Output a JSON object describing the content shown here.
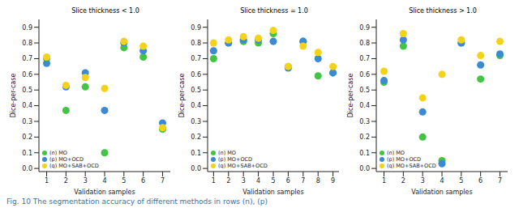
{
  "chart_data": [
    {
      "type": "scatter",
      "title": "Slice thickness < 1.0",
      "x_label": "Validation samples",
      "y_label": "Dice-per-case",
      "x": [
        1,
        2,
        3,
        4,
        5,
        6,
        7
      ],
      "xlim": [
        0.6,
        7.4
      ],
      "xticks": [
        1,
        2,
        3,
        4,
        5,
        6,
        7
      ],
      "ylim": [
        -0.02,
        0.95
      ],
      "yticks": [
        {
          "value": 0,
          "label": "0.0"
        },
        {
          "value": 0.1,
          "label": "0.1"
        },
        {
          "value": 0.2,
          "label": "0.2"
        },
        {
          "value": 0.3,
          "label": "0.3"
        },
        {
          "value": 0.4,
          "label": "0.4"
        },
        {
          "value": 0.5,
          "label": "0.5"
        },
        {
          "value": 0.6,
          "label": "0.6"
        },
        {
          "value": 0.7,
          "label": "0.7"
        },
        {
          "value": 0.8,
          "label": "0.8"
        },
        {
          "value": 0.9,
          "label": "0.9"
        }
      ],
      "grid": false,
      "legend": "lower left",
      "marker": "circle",
      "series": [
        {
          "name": "(n) MO",
          "color": "#44c444",
          "values": [
            0.7,
            0.37,
            0.52,
            0.1,
            0.77,
            0.71,
            0.25
          ]
        },
        {
          "name": "(p) MO+OCD",
          "color": "#3a8ad6",
          "values": [
            0.67,
            0.52,
            0.61,
            0.37,
            0.8,
            0.75,
            0.29
          ]
        },
        {
          "name": "(q) MO+SAB+OCD",
          "color": "#f5d21a",
          "values": [
            0.71,
            0.53,
            0.58,
            0.51,
            0.81,
            0.78,
            0.26
          ]
        }
      ]
    },
    {
      "type": "scatter",
      "title": "Slice thickness = 1.0",
      "x_label": "Validation samples",
      "y_label": "Dice-per-case",
      "x": [
        1,
        2,
        3,
        4,
        5,
        6,
        7,
        8,
        9
      ],
      "xlim": [
        0.6,
        9.4
      ],
      "xticks": [
        1,
        2,
        3,
        4,
        5,
        6,
        7,
        8,
        9
      ],
      "ylim": [
        -0.02,
        0.95
      ],
      "yticks": [
        {
          "value": 0,
          "label": "0.0"
        },
        {
          "value": 0.1,
          "label": "0.1"
        },
        {
          "value": 0.2,
          "label": "0.2"
        },
        {
          "value": 0.3,
          "label": "0.3"
        },
        {
          "value": 0.4,
          "label": "0.4"
        },
        {
          "value": 0.5,
          "label": "0.5"
        },
        {
          "value": 0.6,
          "label": "0.6"
        },
        {
          "value": 0.7,
          "label": "0.7"
        },
        {
          "value": 0.8,
          "label": "0.8"
        },
        {
          "value": 0.9,
          "label": "0.9"
        }
      ],
      "grid": false,
      "legend": "lower left",
      "marker": "circle",
      "series": [
        {
          "name": "(n) MO",
          "color": "#44c444",
          "values": [
            0.7,
            0.8,
            0.81,
            0.8,
            0.86,
            0.65,
            0.81,
            0.59,
            0.61
          ]
        },
        {
          "name": "(p) MO+OCD",
          "color": "#3a8ad6",
          "values": [
            0.75,
            0.8,
            0.82,
            0.82,
            0.81,
            0.64,
            0.81,
            0.7,
            0.61
          ]
        },
        {
          "name": "(q) MO+SAB+OCD",
          "color": "#f5d21a",
          "values": [
            0.8,
            0.82,
            0.84,
            0.83,
            0.88,
            0.65,
            0.78,
            0.74,
            0.65
          ]
        }
      ]
    },
    {
      "type": "scatter",
      "title": "Slice thickness > 1.0",
      "x_label": "Validation samples",
      "y_label": "Dice-per-case",
      "x": [
        1,
        2,
        3,
        4,
        5,
        6,
        7
      ],
      "xlim": [
        0.6,
        7.4
      ],
      "xticks": [
        1,
        2,
        3,
        4,
        5,
        6,
        7
      ],
      "ylim": [
        -0.02,
        0.95
      ],
      "yticks": [
        {
          "value": 0,
          "label": "0.0"
        },
        {
          "value": 0.1,
          "label": "0.1"
        },
        {
          "value": 0.2,
          "label": "0.2"
        },
        {
          "value": 0.3,
          "label": "0.3"
        },
        {
          "value": 0.4,
          "label": "0.4"
        },
        {
          "value": 0.5,
          "label": "0.5"
        },
        {
          "value": 0.6,
          "label": "0.6"
        },
        {
          "value": 0.7,
          "label": "0.7"
        },
        {
          "value": 0.8,
          "label": "0.8"
        },
        {
          "value": 0.9,
          "label": "0.9"
        }
      ],
      "grid": false,
      "legend": "lower left",
      "marker": "circle",
      "series": [
        {
          "name": "(n) MO",
          "color": "#44c444",
          "values": [
            0.55,
            0.78,
            0.2,
            0.05,
            0.8,
            0.57,
            0.72
          ]
        },
        {
          "name": "(p) MO+OCD",
          "color": "#3a8ad6",
          "values": [
            0.56,
            0.82,
            0.36,
            0.03,
            0.8,
            0.66,
            0.73
          ]
        },
        {
          "name": "(q) MO+SAB+OCD",
          "color": "#f5d21a",
          "values": [
            0.62,
            0.86,
            0.45,
            0.6,
            0.82,
            0.72,
            0.81
          ]
        }
      ]
    }
  ],
  "caption": "Fig. 10   The segmentation accuracy of different methods in rows (n), (p)"
}
